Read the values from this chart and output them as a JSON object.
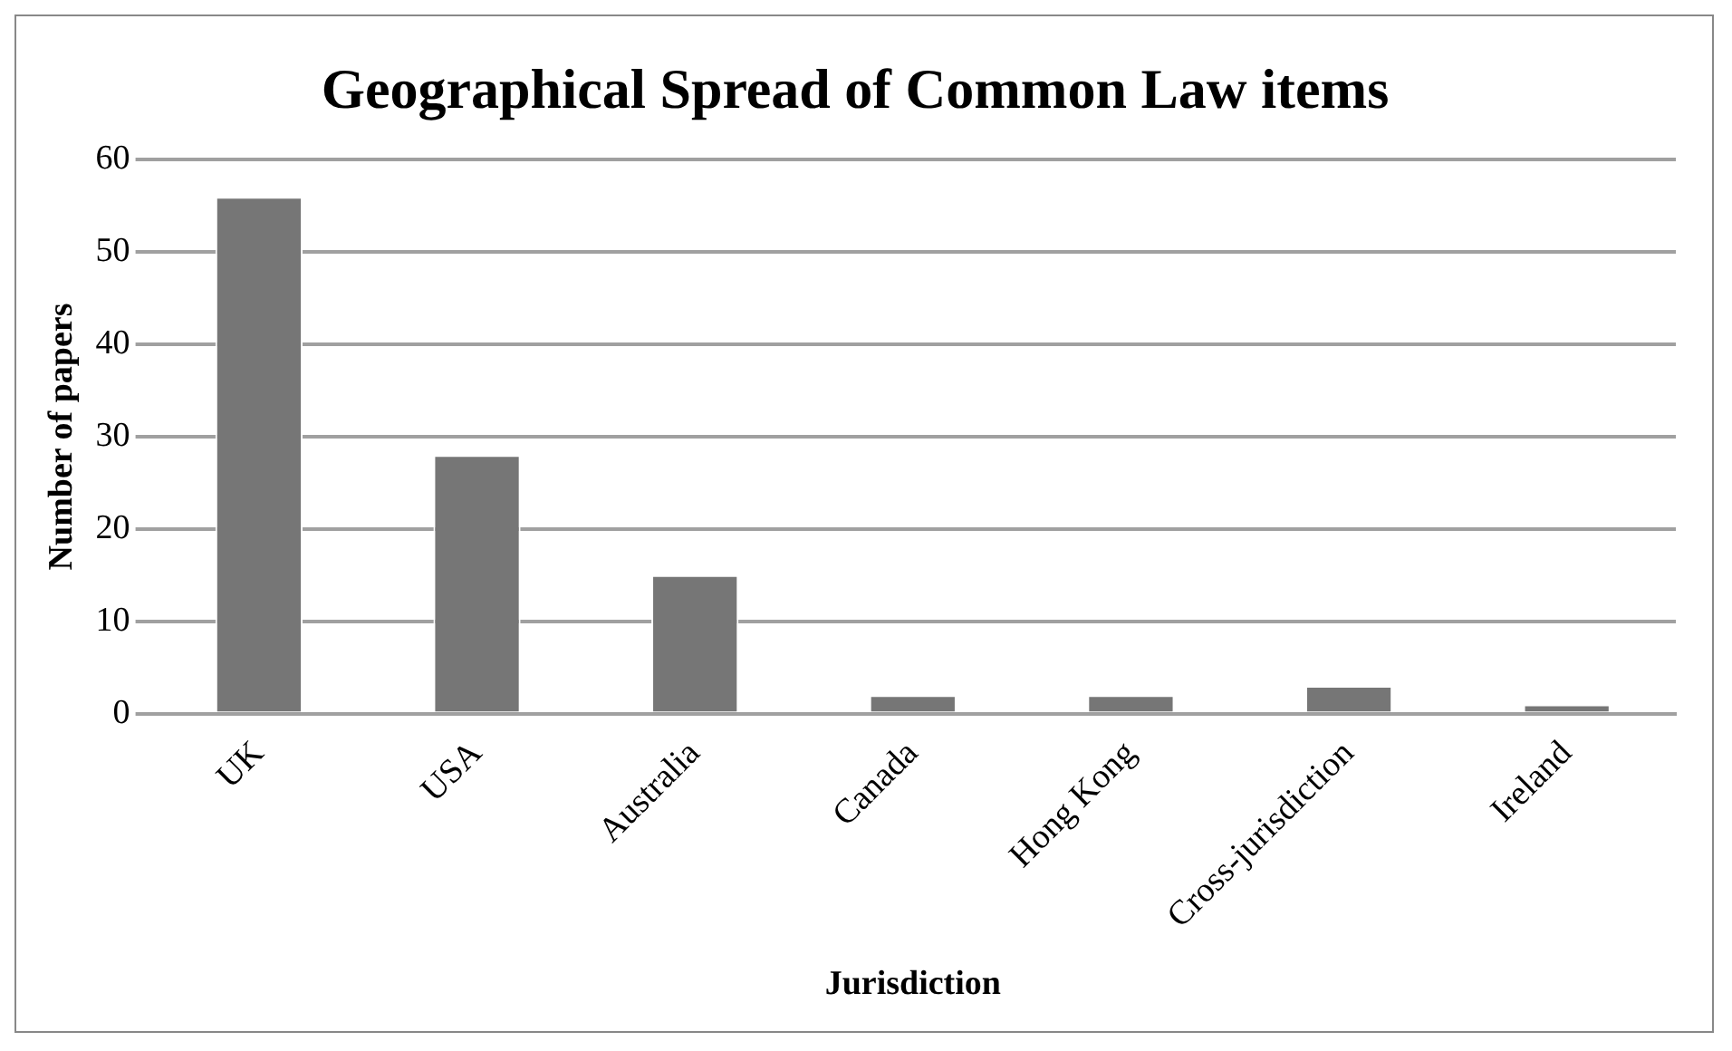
{
  "chart_data": {
    "type": "bar",
    "title": "Geographical Spread of Common Law items",
    "xlabel": "Jurisdiction",
    "ylabel": "Number of papers",
    "categories": [
      "UK",
      "USA",
      "Australia",
      "Canada",
      "Hong Kong",
      "Cross-jurisdiction",
      "Ireland"
    ],
    "values": [
      56,
      28,
      15,
      2,
      2,
      3,
      1
    ],
    "color": "#767676",
    "ylim": [
      0,
      60
    ],
    "yticks": [
      0,
      10,
      20,
      30,
      40,
      50,
      60
    ],
    "grid": "y",
    "legend": false
  }
}
